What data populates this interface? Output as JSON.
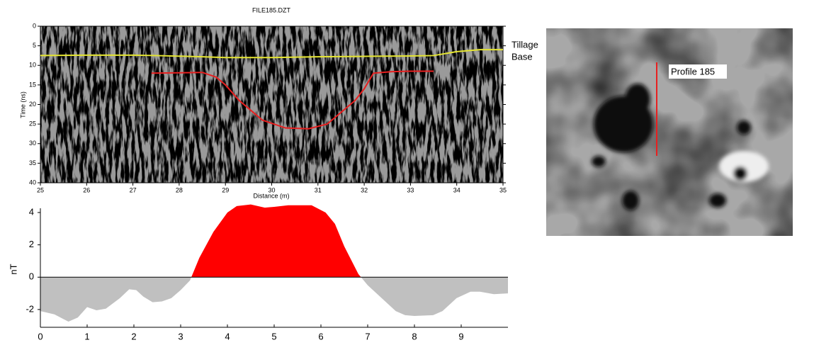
{
  "chart_data": [
    {
      "type": "line",
      "title": "FILE185.DZT",
      "x_label": "Distance (m)",
      "y_label": "Time (ns)",
      "xlim": [
        25,
        35
      ],
      "xticks": [
        25,
        26,
        27,
        28,
        29,
        30,
        31,
        32,
        33,
        34,
        35
      ],
      "ylim": [
        40,
        0
      ],
      "yticks": [
        0,
        5,
        10,
        15,
        20,
        25,
        30,
        35,
        40
      ],
      "annotation": [
        "Tillage",
        "Base"
      ],
      "series": [
        {
          "color": "#e6e632",
          "x": [
            25,
            26,
            27,
            27.5,
            28.5,
            29,
            30,
            31,
            32,
            33,
            33.5,
            34,
            34.5,
            35
          ],
          "values": [
            7.5,
            7.4,
            7.4,
            7.5,
            7.8,
            8,
            8,
            7.8,
            7.7,
            7.6,
            7.5,
            6.5,
            6,
            6
          ]
        },
        {
          "color": "#e82020",
          "x": [
            27.4,
            28,
            28.5,
            28.8,
            29,
            29.3,
            29.6,
            29.8,
            30.3,
            30.8,
            31.2,
            31.5,
            31.8,
            32,
            32.2,
            32.6,
            33,
            33.5
          ],
          "values": [
            12,
            11.9,
            11.8,
            13,
            15,
            19,
            22,
            24,
            26,
            26.2,
            25,
            22,
            19,
            16,
            12,
            11.6,
            11.5,
            11.5
          ]
        }
      ]
    },
    {
      "type": "area",
      "y_label": "nT",
      "xlim": [
        0,
        10
      ],
      "xticks": [
        0,
        1,
        2,
        3,
        4,
        5,
        6,
        7,
        8,
        9
      ],
      "ylim": [
        -3.1,
        4.7
      ],
      "yticks": [
        -2,
        0,
        2,
        4
      ],
      "color_above": "#ff0000",
      "color_below": "#c0c0c0",
      "x": [
        0,
        0.3,
        0.5,
        0.6,
        0.8,
        1.0,
        1.2,
        1.4,
        1.7,
        1.9,
        2.05,
        2.2,
        2.4,
        2.6,
        2.8,
        3.0,
        3.2,
        3.4,
        3.7,
        4.0,
        4.2,
        4.5,
        4.8,
        5.0,
        5.3,
        5.6,
        5.8,
        6.1,
        6.3,
        6.5,
        6.8,
        7.0,
        7.3,
        7.6,
        7.8,
        8.0,
        8.4,
        8.6,
        8.9,
        9.2,
        9.4,
        9.7,
        10
      ],
      "values": [
        -2.1,
        -2.3,
        -2.6,
        -2.75,
        -2.5,
        -1.85,
        -2.05,
        -1.95,
        -1.3,
        -0.75,
        -0.8,
        -1.2,
        -1.55,
        -1.5,
        -1.3,
        -0.8,
        -0.2,
        1.2,
        2.8,
        4.0,
        4.4,
        4.5,
        4.3,
        4.35,
        4.45,
        4.45,
        4.45,
        4.0,
        3.3,
        1.9,
        0.2,
        -0.5,
        -1.3,
        -2.1,
        -2.35,
        -2.4,
        -2.35,
        -2.1,
        -1.3,
        -0.9,
        -0.9,
        -1.05,
        -1.0
      ]
    }
  ],
  "map_image": {
    "label": "Profile 185"
  }
}
